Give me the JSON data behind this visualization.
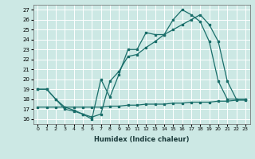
{
  "xlabel": "Humidex (Indice chaleur)",
  "background_color": "#cce8e4",
  "grid_color": "#ffffff",
  "line_color": "#1a6e6a",
  "xlim": [
    -0.5,
    23.5
  ],
  "ylim": [
    15.5,
    27.5
  ],
  "yticks": [
    16,
    17,
    18,
    19,
    20,
    21,
    22,
    23,
    24,
    25,
    26,
    27
  ],
  "xticks": [
    0,
    1,
    2,
    3,
    4,
    5,
    6,
    7,
    8,
    9,
    10,
    11,
    12,
    13,
    14,
    15,
    16,
    17,
    18,
    19,
    20,
    21,
    22,
    23
  ],
  "line_flat": {
    "x": [
      0,
      1,
      2,
      3,
      4,
      5,
      6,
      7,
      8,
      9,
      10,
      11,
      12,
      13,
      14,
      15,
      16,
      17,
      18,
      19,
      20,
      21,
      22,
      23
    ],
    "y": [
      17.2,
      17.2,
      17.2,
      17.2,
      17.2,
      17.2,
      17.2,
      17.2,
      17.3,
      17.3,
      17.4,
      17.4,
      17.5,
      17.5,
      17.5,
      17.6,
      17.6,
      17.7,
      17.7,
      17.7,
      17.8,
      17.8,
      17.9,
      17.9
    ]
  },
  "line_zigzag": {
    "x": [
      0,
      1,
      2,
      3,
      4,
      5,
      6,
      7,
      8,
      9,
      10,
      11,
      12,
      13,
      14,
      15,
      16,
      17,
      18,
      19,
      20,
      21,
      22,
      23
    ],
    "y": [
      19,
      19,
      18,
      17,
      16.8,
      16.5,
      16,
      20,
      18.2,
      20.5,
      23.0,
      23.0,
      24.7,
      24.5,
      24.5,
      26.0,
      27.0,
      26.5,
      25.8,
      23.8,
      19.8,
      18,
      18,
      18
    ]
  },
  "line_smooth": {
    "x": [
      0,
      1,
      2,
      3,
      4,
      5,
      6,
      7,
      8,
      9,
      10,
      11,
      12,
      13,
      14,
      15,
      16,
      17,
      18,
      19,
      20,
      21,
      22,
      23
    ],
    "y": [
      19,
      19,
      18,
      17.2,
      16.9,
      16.5,
      16.2,
      16.5,
      19.8,
      20.8,
      22.3,
      22.5,
      23.2,
      23.8,
      24.5,
      25.0,
      25.5,
      26.0,
      26.5,
      25.5,
      23.8,
      19.8,
      18,
      18
    ]
  }
}
